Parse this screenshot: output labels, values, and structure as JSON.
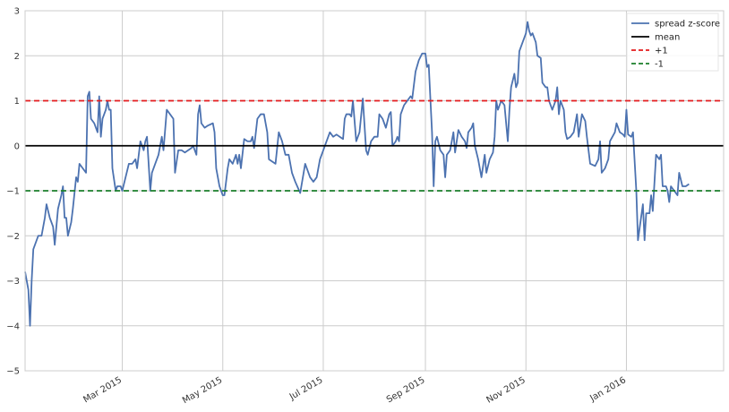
{
  "chart_data": {
    "type": "line",
    "title": "",
    "xlabel": "",
    "ylabel": "",
    "x_range": [
      "2015-01-01",
      "2016-02-29"
    ],
    "ylim": [
      -5,
      3
    ],
    "grid": true,
    "legend_position": "top-right",
    "y_ticks": [
      3,
      2,
      1,
      0,
      -1,
      -2,
      -3,
      -4,
      -5
    ],
    "y_tick_labels": [
      "3",
      "2",
      "1",
      "0",
      "−1",
      "−2",
      "−3",
      "−4",
      "−5"
    ],
    "x_ticks": [
      {
        "date": "2015-03-01",
        "label": "Mar 2015"
      },
      {
        "date": "2015-05-01",
        "label": "May 2015"
      },
      {
        "date": "2015-07-01",
        "label": "Jul 2015"
      },
      {
        "date": "2015-09-01",
        "label": "Sep 2015"
      },
      {
        "date": "2015-11-01",
        "label": "Nov 2015"
      },
      {
        "date": "2016-01-01",
        "label": "Jan 2016"
      }
    ],
    "series": [
      {
        "name": "spread z-score",
        "color": "#4c72b0",
        "style": "solid",
        "points": [
          [
            "2015-01-01",
            -2.8
          ],
          [
            "2015-01-03",
            -3.2
          ],
          [
            "2015-01-04",
            -4.0
          ],
          [
            "2015-01-05",
            -3.0
          ],
          [
            "2015-01-06",
            -2.3
          ],
          [
            "2015-01-09",
            -2.0
          ],
          [
            "2015-01-11",
            -2.0
          ],
          [
            "2015-01-13",
            -1.6
          ],
          [
            "2015-01-14",
            -1.3
          ],
          [
            "2015-01-16",
            -1.6
          ],
          [
            "2015-01-18",
            -1.8
          ],
          [
            "2015-01-19",
            -2.2
          ],
          [
            "2015-01-21",
            -1.4
          ],
          [
            "2015-01-23",
            -1.1
          ],
          [
            "2015-01-24",
            -0.9
          ],
          [
            "2015-01-25",
            -1.6
          ],
          [
            "2015-01-26",
            -1.6
          ],
          [
            "2015-01-27",
            -2.0
          ],
          [
            "2015-01-29",
            -1.7
          ],
          [
            "2015-01-30",
            -1.4
          ],
          [
            "2015-02-01",
            -0.7
          ],
          [
            "2015-02-02",
            -0.8
          ],
          [
            "2015-02-03",
            -0.4
          ],
          [
            "2015-02-05",
            -0.5
          ],
          [
            "2015-02-07",
            -0.6
          ],
          [
            "2015-02-08",
            1.1
          ],
          [
            "2015-02-09",
            1.2
          ],
          [
            "2015-02-10",
            0.6
          ],
          [
            "2015-02-12",
            0.5
          ],
          [
            "2015-02-14",
            0.3
          ],
          [
            "2015-02-15",
            1.1
          ],
          [
            "2015-02-16",
            0.2
          ],
          [
            "2015-02-17",
            0.6
          ],
          [
            "2015-02-19",
            0.8
          ],
          [
            "2015-02-20",
            1.0
          ],
          [
            "2015-02-21",
            0.8
          ],
          [
            "2015-02-22",
            0.8
          ],
          [
            "2015-02-23",
            -0.5
          ],
          [
            "2015-02-25",
            -1.0
          ],
          [
            "2015-02-26",
            -0.9
          ],
          [
            "2015-02-28",
            -0.9
          ],
          [
            "2015-03-01",
            -1.0
          ],
          [
            "2015-03-03",
            -0.7
          ],
          [
            "2015-03-05",
            -0.4
          ],
          [
            "2015-03-07",
            -0.4
          ],
          [
            "2015-03-09",
            -0.3
          ],
          [
            "2015-03-10",
            -0.5
          ],
          [
            "2015-03-11",
            -0.2
          ],
          [
            "2015-03-12",
            0.1
          ],
          [
            "2015-03-14",
            -0.1
          ],
          [
            "2015-03-15",
            0.1
          ],
          [
            "2015-03-16",
            0.2
          ],
          [
            "2015-03-18",
            -1.0
          ],
          [
            "2015-03-19",
            -0.6
          ],
          [
            "2015-03-21",
            -0.4
          ],
          [
            "2015-03-23",
            -0.2
          ],
          [
            "2015-03-25",
            0.2
          ],
          [
            "2015-03-26",
            -0.1
          ],
          [
            "2015-03-28",
            0.8
          ],
          [
            "2015-03-30",
            0.7
          ],
          [
            "2015-04-01",
            0.6
          ],
          [
            "2015-04-02",
            -0.6
          ],
          [
            "2015-04-04",
            -0.1
          ],
          [
            "2015-04-06",
            -0.1
          ],
          [
            "2015-04-08",
            -0.15
          ],
          [
            "2015-04-10",
            -0.1
          ],
          [
            "2015-04-12",
            -0.05
          ],
          [
            "2015-04-13",
            0.0
          ],
          [
            "2015-04-15",
            -0.2
          ],
          [
            "2015-04-16",
            0.7
          ],
          [
            "2015-04-17",
            0.9
          ],
          [
            "2015-04-18",
            0.5
          ],
          [
            "2015-04-20",
            0.4
          ],
          [
            "2015-04-22",
            0.45
          ],
          [
            "2015-04-25",
            0.5
          ],
          [
            "2015-04-26",
            0.3
          ],
          [
            "2015-04-27",
            -0.5
          ],
          [
            "2015-04-29",
            -0.9
          ],
          [
            "2015-05-01",
            -1.1
          ],
          [
            "2015-05-02",
            -1.1
          ],
          [
            "2015-05-04",
            -0.5
          ],
          [
            "2015-05-05",
            -0.3
          ],
          [
            "2015-05-07",
            -0.4
          ],
          [
            "2015-05-09",
            -0.2
          ],
          [
            "2015-05-10",
            -0.4
          ],
          [
            "2015-05-11",
            -0.2
          ],
          [
            "2015-05-12",
            -0.5
          ],
          [
            "2015-05-14",
            0.15
          ],
          [
            "2015-05-16",
            0.1
          ],
          [
            "2015-05-18",
            0.1
          ],
          [
            "2015-05-19",
            0.2
          ],
          [
            "2015-05-20",
            -0.05
          ],
          [
            "2015-05-22",
            0.6
          ],
          [
            "2015-05-24",
            0.7
          ],
          [
            "2015-05-26",
            0.7
          ],
          [
            "2015-05-28",
            0.3
          ],
          [
            "2015-05-29",
            -0.3
          ],
          [
            "2015-06-02",
            -0.4
          ],
          [
            "2015-06-04",
            0.3
          ],
          [
            "2015-06-06",
            0.1
          ],
          [
            "2015-06-08",
            -0.2
          ],
          [
            "2015-06-10",
            -0.2
          ],
          [
            "2015-06-12",
            -0.6
          ],
          [
            "2015-06-14",
            -0.8
          ],
          [
            "2015-06-17",
            -1.05
          ],
          [
            "2015-06-20",
            -0.4
          ],
          [
            "2015-06-23",
            -0.7
          ],
          [
            "2015-06-25",
            -0.8
          ],
          [
            "2015-06-27",
            -0.7
          ],
          [
            "2015-06-29",
            -0.3
          ],
          [
            "2015-07-01",
            -0.1
          ],
          [
            "2015-07-03",
            0.1
          ],
          [
            "2015-07-05",
            0.3
          ],
          [
            "2015-07-07",
            0.2
          ],
          [
            "2015-07-09",
            0.25
          ],
          [
            "2015-07-11",
            0.2
          ],
          [
            "2015-07-13",
            0.15
          ],
          [
            "2015-07-14",
            0.6
          ],
          [
            "2015-07-15",
            0.7
          ],
          [
            "2015-07-17",
            0.7
          ],
          [
            "2015-07-18",
            0.65
          ],
          [
            "2015-07-19",
            1.0
          ],
          [
            "2015-07-21",
            0.1
          ],
          [
            "2015-07-23",
            0.3
          ],
          [
            "2015-07-25",
            1.05
          ],
          [
            "2015-07-27",
            -0.1
          ],
          [
            "2015-07-28",
            -0.2
          ],
          [
            "2015-07-30",
            0.1
          ],
          [
            "2015-08-01",
            0.2
          ],
          [
            "2015-08-03",
            0.2
          ],
          [
            "2015-08-04",
            0.7
          ],
          [
            "2015-08-06",
            0.6
          ],
          [
            "2015-08-08",
            0.4
          ],
          [
            "2015-08-10",
            0.7
          ],
          [
            "2015-08-11",
            0.75
          ],
          [
            "2015-08-12",
            0.0
          ],
          [
            "2015-08-14",
            0.1
          ],
          [
            "2015-08-15",
            0.2
          ],
          [
            "2015-08-16",
            0.1
          ],
          [
            "2015-08-17",
            0.7
          ],
          [
            "2015-08-19",
            0.9
          ],
          [
            "2015-08-21",
            1.0
          ],
          [
            "2015-08-23",
            1.1
          ],
          [
            "2015-08-24",
            1.05
          ],
          [
            "2015-08-26",
            1.65
          ],
          [
            "2015-08-28",
            1.9
          ],
          [
            "2015-08-30",
            2.05
          ],
          [
            "2015-09-01",
            2.05
          ],
          [
            "2015-09-02",
            1.75
          ],
          [
            "2015-09-03",
            1.8
          ],
          [
            "2015-09-05",
            0.3
          ],
          [
            "2015-09-06",
            -0.9
          ],
          [
            "2015-09-07",
            0.1
          ],
          [
            "2015-09-08",
            0.2
          ],
          [
            "2015-09-10",
            -0.1
          ],
          [
            "2015-09-12",
            -0.2
          ],
          [
            "2015-09-13",
            -0.7
          ],
          [
            "2015-09-14",
            -0.2
          ],
          [
            "2015-09-16",
            -0.1
          ],
          [
            "2015-09-18",
            0.3
          ],
          [
            "2015-09-19",
            -0.15
          ],
          [
            "2015-09-21",
            0.35
          ],
          [
            "2015-09-23",
            0.2
          ],
          [
            "2015-09-25",
            0.1
          ],
          [
            "2015-09-26",
            -0.05
          ],
          [
            "2015-09-27",
            0.3
          ],
          [
            "2015-09-29",
            0.4
          ],
          [
            "2015-09-30",
            0.5
          ],
          [
            "2015-10-01",
            0.0
          ],
          [
            "2015-10-03",
            -0.3
          ],
          [
            "2015-10-05",
            -0.7
          ],
          [
            "2015-10-07",
            -0.2
          ],
          [
            "2015-10-08",
            -0.6
          ],
          [
            "2015-10-10",
            -0.3
          ],
          [
            "2015-10-12",
            -0.15
          ],
          [
            "2015-10-13",
            0.2
          ],
          [
            "2015-10-14",
            1.0
          ],
          [
            "2015-10-15",
            0.8
          ],
          [
            "2015-10-17",
            1.0
          ],
          [
            "2015-10-19",
            0.9
          ],
          [
            "2015-10-20",
            0.5
          ],
          [
            "2015-10-21",
            0.1
          ],
          [
            "2015-10-22",
            0.8
          ],
          [
            "2015-10-23",
            1.3
          ],
          [
            "2015-10-25",
            1.6
          ],
          [
            "2015-10-26",
            1.3
          ],
          [
            "2015-10-27",
            1.4
          ],
          [
            "2015-10-28",
            2.1
          ],
          [
            "2015-10-30",
            2.3
          ],
          [
            "2015-11-01",
            2.5
          ],
          [
            "2015-11-02",
            2.75
          ],
          [
            "2015-11-03",
            2.55
          ],
          [
            "2015-11-04",
            2.45
          ],
          [
            "2015-11-05",
            2.5
          ],
          [
            "2015-11-07",
            2.3
          ],
          [
            "2015-11-08",
            2.0
          ],
          [
            "2015-11-10",
            1.95
          ],
          [
            "2015-11-11",
            1.4
          ],
          [
            "2015-11-13",
            1.3
          ],
          [
            "2015-11-14",
            1.3
          ],
          [
            "2015-11-15",
            1.0
          ],
          [
            "2015-11-16",
            0.9
          ],
          [
            "2015-11-17",
            0.8
          ],
          [
            "2015-11-19",
            1.0
          ],
          [
            "2015-11-20",
            1.3
          ],
          [
            "2015-11-21",
            0.7
          ],
          [
            "2015-11-22",
            1.0
          ],
          [
            "2015-11-24",
            0.8
          ],
          [
            "2015-11-25",
            0.3
          ],
          [
            "2015-11-26",
            0.15
          ],
          [
            "2015-11-28",
            0.2
          ],
          [
            "2015-11-30",
            0.3
          ],
          [
            "2015-12-02",
            0.7
          ],
          [
            "2015-12-03",
            0.2
          ],
          [
            "2015-12-05",
            0.7
          ],
          [
            "2015-12-07",
            0.55
          ],
          [
            "2015-12-08",
            0.2
          ],
          [
            "2015-12-10",
            -0.4
          ],
          [
            "2015-12-13",
            -0.45
          ],
          [
            "2015-12-15",
            -0.3
          ],
          [
            "2015-12-16",
            0.1
          ],
          [
            "2015-12-17",
            -0.6
          ],
          [
            "2015-12-19",
            -0.5
          ],
          [
            "2015-12-21",
            -0.3
          ],
          [
            "2015-12-22",
            0.1
          ],
          [
            "2015-12-25",
            0.3
          ],
          [
            "2015-12-26",
            0.5
          ],
          [
            "2015-12-28",
            0.3
          ],
          [
            "2015-12-30",
            0.25
          ],
          [
            "2015-12-31",
            0.2
          ],
          [
            "2016-01-01",
            0.8
          ],
          [
            "2016-01-02",
            0.25
          ],
          [
            "2016-01-04",
            0.2
          ],
          [
            "2016-01-05",
            0.3
          ],
          [
            "2016-01-07",
            -1.0
          ],
          [
            "2016-01-08",
            -2.1
          ],
          [
            "2016-01-11",
            -1.3
          ],
          [
            "2016-01-12",
            -2.1
          ],
          [
            "2016-01-13",
            -1.5
          ],
          [
            "2016-01-15",
            -1.5
          ],
          [
            "2016-01-16",
            -1.1
          ],
          [
            "2016-01-17",
            -1.45
          ],
          [
            "2016-01-19",
            -0.2
          ],
          [
            "2016-01-21",
            -0.3
          ],
          [
            "2016-01-22",
            -0.2
          ],
          [
            "2016-01-23",
            -0.9
          ],
          [
            "2016-01-25",
            -0.9
          ],
          [
            "2016-01-26",
            -1.0
          ],
          [
            "2016-01-27",
            -1.25
          ],
          [
            "2016-01-28",
            -0.9
          ],
          [
            "2016-01-30",
            -1.0
          ],
          [
            "2016-02-01",
            -1.1
          ],
          [
            "2016-02-02",
            -0.6
          ],
          [
            "2016-02-04",
            -0.9
          ],
          [
            "2016-02-06",
            -0.9
          ],
          [
            "2016-02-08",
            -0.85
          ]
        ]
      },
      {
        "name": "mean",
        "color": "#000000",
        "style": "solid",
        "constant": 0
      },
      {
        "name": "+1",
        "color": "#e41a1c",
        "style": "dashed",
        "constant": 1
      },
      {
        "name": "-1",
        "color": "#1a7f2a",
        "style": "dashed",
        "constant": -1
      }
    ]
  }
}
